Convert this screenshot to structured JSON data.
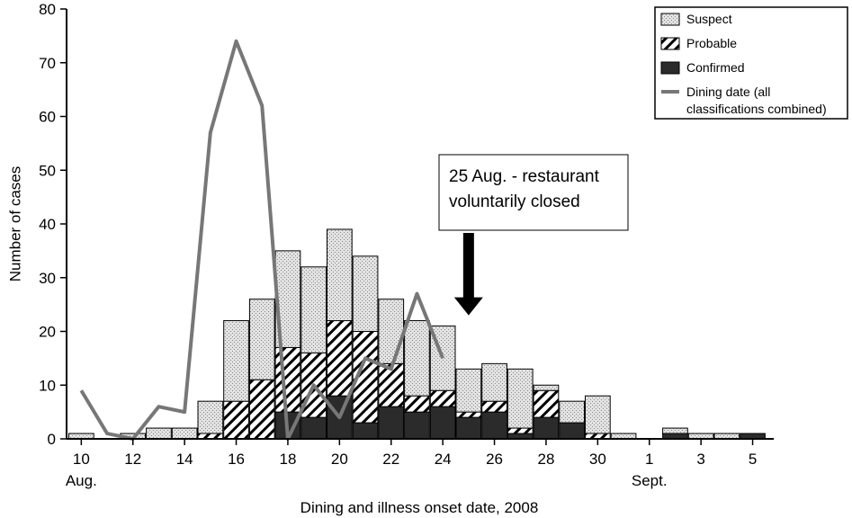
{
  "chart_data": {
    "type": "bar",
    "stacked": true,
    "xlabel": "Dining and illness onset date, 2008",
    "ylabel": "Number of cases",
    "ylim": [
      0,
      80
    ],
    "yticks": [
      0,
      10,
      20,
      30,
      40,
      50,
      60,
      70,
      80
    ],
    "grid": false,
    "legend_position": "top-right",
    "categories": [
      "10",
      "11",
      "12",
      "13",
      "14",
      "15",
      "16",
      "17",
      "18",
      "19",
      "20",
      "21",
      "22",
      "23",
      "24",
      "25",
      "26",
      "27",
      "28",
      "29",
      "30",
      "31",
      "1",
      "2",
      "3",
      "4",
      "5",
      "6"
    ],
    "x_tick_labels": [
      {
        "category": "10",
        "label": "10",
        "sublabel": "Aug."
      },
      {
        "category": "12",
        "label": "12",
        "sublabel": ""
      },
      {
        "category": "14",
        "label": "14",
        "sublabel": ""
      },
      {
        "category": "16",
        "label": "16",
        "sublabel": ""
      },
      {
        "category": "18",
        "label": "18",
        "sublabel": ""
      },
      {
        "category": "20",
        "label": "20",
        "sublabel": ""
      },
      {
        "category": "22",
        "label": "22",
        "sublabel": ""
      },
      {
        "category": "24",
        "label": "24",
        "sublabel": ""
      },
      {
        "category": "26",
        "label": "26",
        "sublabel": ""
      },
      {
        "category": "28",
        "label": "28",
        "sublabel": ""
      },
      {
        "category": "30",
        "label": "30",
        "sublabel": ""
      },
      {
        "category": "1",
        "label": "1",
        "sublabel": "Sept."
      },
      {
        "category": "3",
        "label": "3",
        "sublabel": ""
      },
      {
        "category": "5",
        "label": "5",
        "sublabel": ""
      }
    ],
    "series": [
      {
        "name": "Confirmed",
        "kind": "bar",
        "fill": "#2b2b2b",
        "values": [
          0,
          0,
          0,
          0,
          0,
          0,
          0,
          0,
          5,
          4,
          8,
          3,
          6,
          5,
          6,
          4,
          5,
          1,
          4,
          3,
          0,
          0,
          0,
          1,
          0,
          0,
          1,
          0
        ]
      },
      {
        "name": "Probable",
        "kind": "bar",
        "fill": "hatch",
        "values": [
          0,
          0,
          0,
          0,
          0,
          1,
          7,
          11,
          12,
          12,
          14,
          17,
          8,
          3,
          3,
          1,
          2,
          1,
          5,
          0,
          1,
          0,
          0,
          0,
          0,
          0,
          0,
          0
        ]
      },
      {
        "name": "Suspect",
        "kind": "bar",
        "fill": "dots",
        "values": [
          1,
          0,
          1,
          2,
          2,
          6,
          15,
          15,
          18,
          16,
          17,
          14,
          12,
          14,
          12,
          8,
          7,
          11,
          1,
          4,
          7,
          1,
          0,
          1,
          1,
          1,
          0,
          0
        ]
      },
      {
        "name": "Dining date (all classifications combined)",
        "kind": "line",
        "color": "#777777",
        "x": [
          "10",
          "11",
          "12",
          "13",
          "14",
          "15",
          "16",
          "17",
          "18",
          "19",
          "20",
          "21",
          "22",
          "23",
          "24"
        ],
        "values": [
          9,
          1,
          0,
          6,
          5,
          57,
          74,
          62,
          0,
          10,
          4,
          15,
          13,
          27,
          15
        ]
      }
    ],
    "annotations": [
      {
        "text_lines": [
          "25 Aug. - restaurant",
          "voluntarily closed"
        ],
        "points_to_category": "25",
        "arrow_tip_value": 23
      }
    ]
  }
}
